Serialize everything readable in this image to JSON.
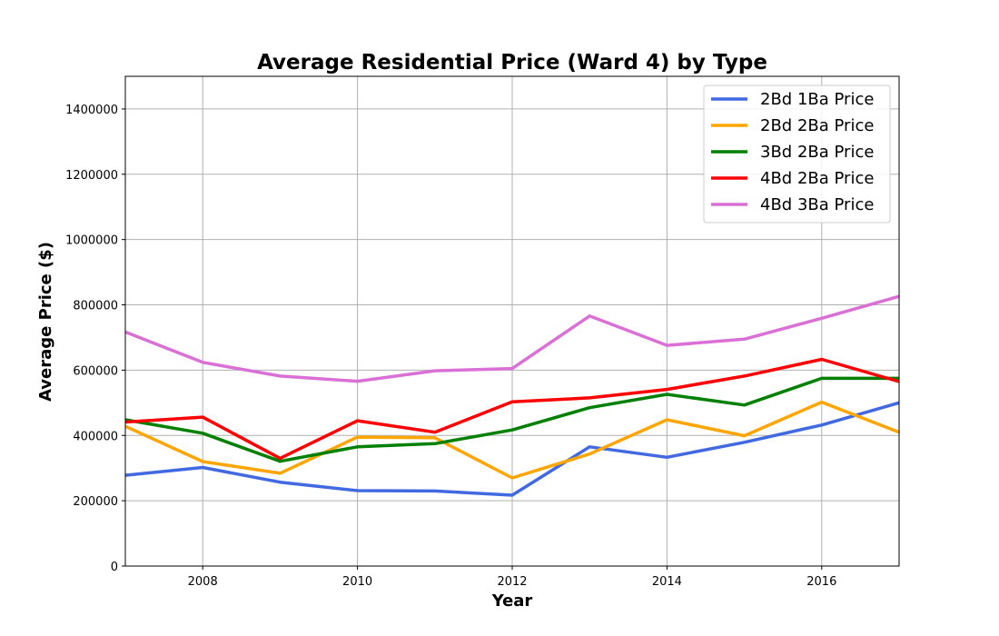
{
  "chart_data": {
    "type": "line",
    "title": "Average Residential Price (Ward 4) by Type",
    "xlabel": "Year",
    "ylabel": "Average Price ($)",
    "xlim": [
      2007,
      2017
    ],
    "ylim": [
      0,
      1500000
    ],
    "x_ticks": [
      2008,
      2010,
      2012,
      2014,
      2016
    ],
    "y_ticks": [
      0,
      200000,
      400000,
      600000,
      800000,
      1000000,
      1200000,
      1400000
    ],
    "grid": true,
    "legend_position": "top-right",
    "x": [
      2007,
      2008,
      2009,
      2010,
      2011,
      2012,
      2013,
      2014,
      2015,
      2016,
      2017
    ],
    "series": [
      {
        "name": "2Bd 1Ba Price",
        "color": "#4169e1",
        "values": [
          278000,
          302000,
          257000,
          231000,
          230000,
          217000,
          365000,
          333000,
          379000,
          432000,
          500000
        ]
      },
      {
        "name": "2Bd 2Ba Price",
        "color": "#ffa500",
        "values": [
          428000,
          320000,
          284000,
          395000,
          393000,
          270000,
          343000,
          448000,
          399000,
          502000,
          410000
        ]
      },
      {
        "name": "3Bd 2Ba Price",
        "color": "#008000",
        "values": [
          448000,
          407000,
          321000,
          365000,
          375000,
          417000,
          485000,
          526000,
          493000,
          575000,
          575000
        ]
      },
      {
        "name": "4Bd 2Ba Price",
        "color": "#ff0000",
        "values": [
          441000,
          456000,
          330000,
          445000,
          410000,
          503000,
          515000,
          541000,
          582000,
          633000,
          565000
        ]
      },
      {
        "name": "4Bd 3Ba Price",
        "color": "#da70d6",
        "values": [
          717000,
          624000,
          582000,
          566000,
          598000,
          605000,
          766000,
          676000,
          695000,
          759000,
          826000
        ]
      }
    ]
  }
}
